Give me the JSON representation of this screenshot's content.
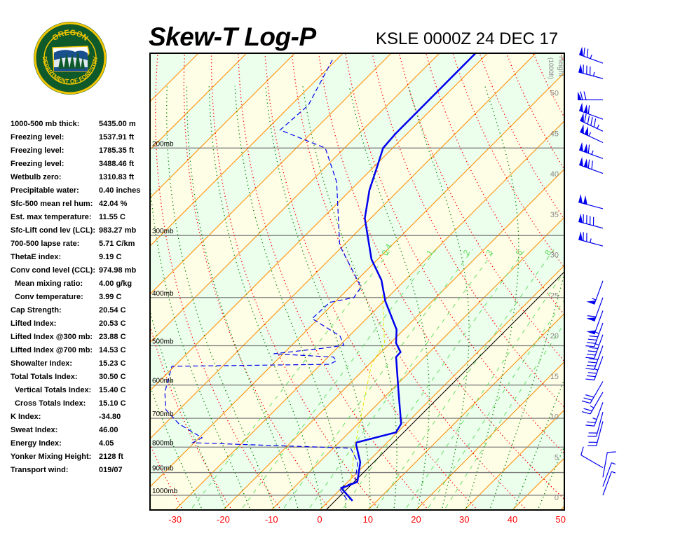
{
  "header": {
    "title": "Skew-T Log-P",
    "station": "KSLE 0000Z 24 DEC 17"
  },
  "logo": {
    "top_text": "OREGON",
    "bottom_text": "DEPARTMENT OF FORESTRY",
    "colors": {
      "ring": "#f2c500",
      "field": "#0f5a2a"
    }
  },
  "stats": [
    {
      "label": "1000-500 mb thick:",
      "value": "5435.00 m"
    },
    {
      "label": "Freezing level:",
      "value": "1537.91 ft"
    },
    {
      "label": "Freezing level:",
      "value": "1785.35 ft"
    },
    {
      "label": "Freezing level:",
      "value": "3488.46 ft"
    },
    {
      "label": "Wetbulb zero:",
      "value": "1310.83 ft"
    },
    {
      "label": "Precipitable water:",
      "value": "0.40 inches"
    },
    {
      "label": "Sfc-500 mean rel hum:",
      "value": "42.04 %"
    },
    {
      "label": "Est. max temperature:",
      "value": "11.55 C"
    },
    {
      "label": "Sfc-Lift cond lev (LCL):",
      "value": "983.27 mb"
    },
    {
      "label": "700-500 lapse rate:",
      "value": "5.71 C/km"
    },
    {
      "label": "ThetaE index:",
      "value": "9.19 C"
    },
    {
      "label": "Conv cond level (CCL):",
      "value": "974.98 mb"
    },
    {
      "label": "Mean mixing ratio:",
      "value": "4.00 g/kg",
      "indent": true
    },
    {
      "label": "Conv temperature:",
      "value": "3.99 C",
      "indent": true
    },
    {
      "label": "Cap Strength:",
      "value": "20.54 C"
    },
    {
      "label": "Lifted Index:",
      "value": "20.53 C"
    },
    {
      "label": "Lifted Index @300 mb:",
      "value": "23.88 C"
    },
    {
      "label": "Lifted Index @700 mb:",
      "value": "14.53 C"
    },
    {
      "label": "Showalter Index:",
      "value": "15.23 C"
    },
    {
      "label": "Total Totals Index:",
      "value": "30.50 C"
    },
    {
      "label": "Vertical Totals Index:",
      "value": "15.40 C",
      "indent": true
    },
    {
      "label": "Cross Totals Index:",
      "value": "15.10 C",
      "indent": true
    },
    {
      "label": "K Index:",
      "value": "-34.80"
    },
    {
      "label": "Sweat Index:",
      "value": "46.00"
    },
    {
      "label": "Energy Index:",
      "value": "4.05"
    },
    {
      "label": "Yonker Mixing Height:",
      "value": "2128 ft"
    },
    {
      "label": "Transport wind:",
      "value": "019/07"
    }
  ],
  "chart_data": {
    "type": "line",
    "title": "Skew-T Log-P",
    "xlabel": "Temperature (C)",
    "ylabel": "Pressure (mb)",
    "x_ticks": [
      -30,
      -20,
      -10,
      0,
      10,
      20,
      30,
      40,
      50
    ],
    "pressure_levels": [
      200,
      300,
      400,
      500,
      600,
      700,
      800,
      900,
      1000
    ],
    "pressure_labels": [
      "200mb",
      "300mb",
      "400mb",
      "500mb",
      "600mb",
      "700mb",
      "800mb",
      "900mb",
      "1000mb"
    ],
    "height_axis": {
      "label": "Height",
      "unit": "(1000ft)",
      "ticks": [
        0,
        5,
        10,
        15,
        20,
        25,
        30,
        35,
        40,
        45,
        50
      ]
    },
    "mixing_ratio_labels": [
      "0.4",
      "1",
      "2",
      "3",
      "5",
      "8"
    ],
    "mixing_ratio_values": [
      0.4,
      1,
      2,
      3,
      5,
      8,
      12,
      16,
      20
    ],
    "series": [
      {
        "name": "temperature",
        "color": "#0000ee",
        "points": [
          [
            1026,
            4.9
          ],
          [
            968,
            0.0
          ],
          [
            940,
            2.0
          ],
          [
            858,
            -1.5
          ],
          [
            784,
            -6.5
          ],
          [
            747,
            -0.3
          ],
          [
            718,
            -1.0
          ],
          [
            620,
            -8.1
          ],
          [
            527,
            -15.9
          ],
          [
            515,
            -16.0
          ],
          [
            494,
            -18.8
          ],
          [
            464,
            -21.5
          ],
          [
            407,
            -29.7
          ],
          [
            369,
            -34.9
          ],
          [
            335,
            -41.3
          ],
          [
            277,
            -51.2
          ],
          [
            243,
            -56.1
          ],
          [
            217,
            -59.5
          ],
          [
            200,
            -62.0
          ],
          [
            187,
            -62.4
          ],
          [
            129,
            -62.5
          ]
        ]
      },
      {
        "name": "dewpoint",
        "color": "#0000ee",
        "points": [
          [
            1020,
            3.5
          ],
          [
            968,
            -0.5
          ],
          [
            940,
            1.5
          ],
          [
            858,
            -2.0
          ],
          [
            804,
            -6.4
          ],
          [
            784,
            -40.3
          ],
          [
            766,
            -39.4
          ],
          [
            718,
            -47.1
          ],
          [
            673,
            -52.7
          ],
          [
            620,
            -56.6
          ],
          [
            550,
            -60.5
          ],
          [
            545,
            -28.2
          ],
          [
            536,
            -27.5
          ],
          [
            527,
            -28.9
          ],
          [
            519,
            -42.0
          ],
          [
            506,
            -33.0
          ],
          [
            499,
            -29.2
          ],
          [
            478,
            -31.9
          ],
          [
            441,
            -41.3
          ],
          [
            409,
            -41.0
          ],
          [
            400,
            -37.0
          ],
          [
            381,
            -37.7
          ],
          [
            314,
            -50.8
          ],
          [
            234,
            -64.6
          ],
          [
            200,
            -74.0
          ],
          [
            184,
            -87.1
          ],
          [
            164,
            -86.4
          ],
          [
            133,
            -90.8
          ]
        ]
      },
      {
        "name": "parcel",
        "color": "#e8e800",
        "points": [
          [
            946,
            0.9
          ],
          [
            804,
            -5.6
          ],
          [
            545,
            -19.5
          ],
          [
            494,
            -21.2
          ],
          [
            393,
            -31.9
          ]
        ]
      }
    ],
    "winds": [
      {
        "p": 135,
        "dir": 290,
        "spd": 75
      },
      {
        "p": 145,
        "dir": 285,
        "spd": 85
      },
      {
        "p": 160,
        "dir": 270,
        "spd": 70
      },
      {
        "p": 175,
        "dir": 290,
        "spd": 110
      },
      {
        "p": 185,
        "dir": 295,
        "spd": 95
      },
      {
        "p": 195,
        "dir": 295,
        "spd": 105
      },
      {
        "p": 210,
        "dir": 290,
        "spd": 115
      },
      {
        "p": 225,
        "dir": 290,
        "spd": 120
      },
      {
        "p": 265,
        "dir": 285,
        "spd": 100
      },
      {
        "p": 290,
        "dir": 285,
        "spd": 90
      },
      {
        "p": 315,
        "dir": 285,
        "spd": 75
      },
      {
        "p": 370,
        "dir": 200,
        "spd": 55
      },
      {
        "p": 400,
        "dir": 200,
        "spd": 60
      },
      {
        "p": 425,
        "dir": 200,
        "spd": 50
      },
      {
        "p": 450,
        "dir": 200,
        "spd": 45
      },
      {
        "p": 475,
        "dir": 200,
        "spd": 45
      },
      {
        "p": 500,
        "dir": 200,
        "spd": 40
      },
      {
        "p": 525,
        "dir": 200,
        "spd": 35
      },
      {
        "p": 590,
        "dir": 210,
        "spd": 30
      },
      {
        "p": 620,
        "dir": 210,
        "spd": 25
      },
      {
        "p": 650,
        "dir": 200,
        "spd": 25
      },
      {
        "p": 680,
        "dir": 195,
        "spd": 20
      },
      {
        "p": 710,
        "dir": 195,
        "spd": 20
      },
      {
        "p": 880,
        "dir": 300,
        "spd": 10
      },
      {
        "p": 920,
        "dir": 10,
        "spd": 10
      },
      {
        "p": 960,
        "dir": 20,
        "spd": 7
      },
      {
        "p": 1000,
        "dir": 20,
        "spd": 7
      }
    ],
    "colors": {
      "isotherm": "#ff8c00",
      "dry_adiabat": "#ff0000",
      "moist_adiabat": "#008000",
      "mixing_ratio": "#66dd66",
      "band_a": "#fefee6",
      "band_b": "#ecfeec",
      "wind": "#0000ee"
    }
  }
}
